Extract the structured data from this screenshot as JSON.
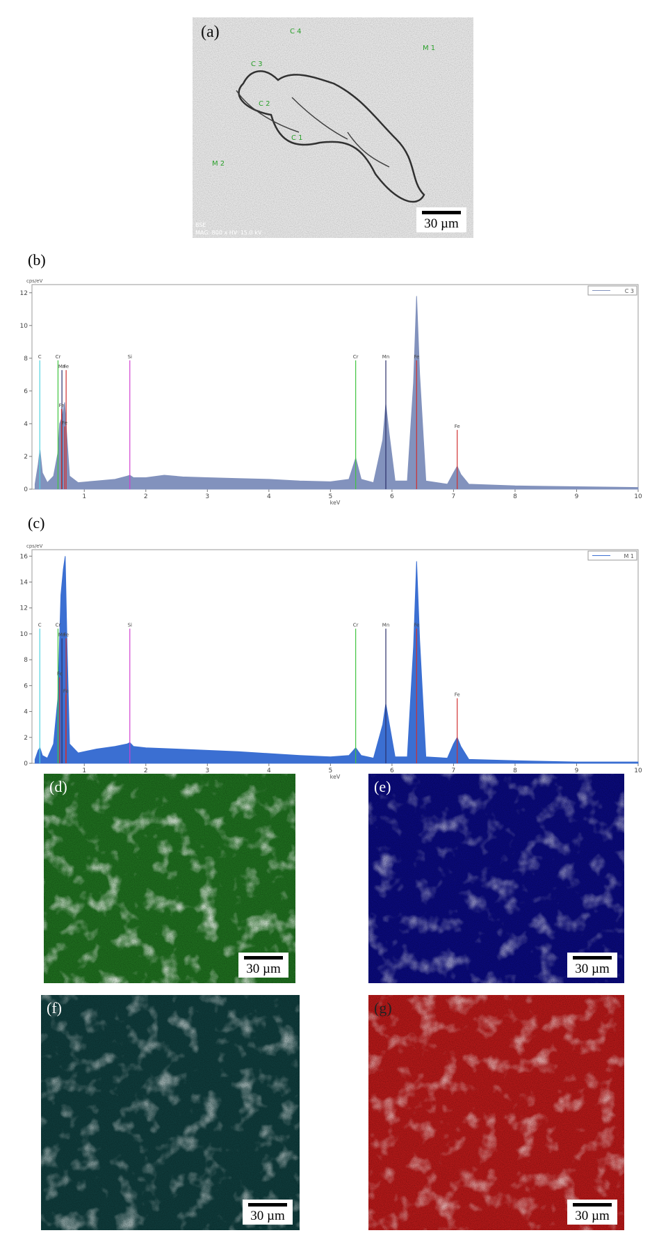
{
  "panels": {
    "a": {
      "label": "(a)",
      "scale_bar": "30 µm",
      "annotations": [
        "C 4",
        "M 1",
        "C 3",
        "C 2",
        "C 1",
        "M 2"
      ],
      "footer_1": "BSE",
      "footer_2": "MAG: 800 x  HV: 15.0 kV"
    },
    "d": {
      "label": "(d)",
      "scale_bar": "30 µm"
    },
    "e": {
      "label": "(e)",
      "scale_bar": "30 µm"
    },
    "f": {
      "label": "(f)",
      "scale_bar": "30 µm"
    },
    "g": {
      "label": "(g)",
      "scale_bar": "30 µm"
    }
  },
  "chart_data": [
    {
      "type": "area",
      "label": "(b)",
      "y_label": "cps/eV",
      "x_label": "keV",
      "legend": "C 3",
      "color": "#8292bd",
      "x": [
        0.2,
        0.25,
        0.28,
        0.32,
        0.4,
        0.5,
        0.57,
        0.6,
        0.64,
        0.68,
        0.72,
        0.76,
        0.9,
        1.2,
        1.5,
        1.7,
        1.74,
        1.8,
        2.0,
        2.3,
        2.6,
        3.0,
        3.5,
        4.0,
        4.5,
        5.0,
        5.3,
        5.41,
        5.5,
        5.7,
        5.85,
        5.9,
        5.95,
        6.05,
        6.25,
        6.35,
        6.4,
        6.45,
        6.55,
        6.9,
        7.0,
        7.06,
        7.12,
        7.25,
        8,
        9,
        10
      ],
      "values": [
        0.3,
        1.5,
        2.4,
        1.0,
        0.4,
        0.8,
        2.2,
        4.0,
        4.4,
        5.3,
        3.0,
        0.8,
        0.4,
        0.5,
        0.6,
        0.8,
        0.85,
        0.7,
        0.7,
        0.85,
        0.75,
        0.7,
        0.65,
        0.6,
        0.5,
        0.45,
        0.6,
        1.9,
        0.6,
        0.4,
        3.0,
        5.2,
        3.5,
        0.5,
        0.5,
        6.5,
        11.8,
        7.0,
        0.5,
        0.3,
        1.0,
        1.4,
        0.9,
        0.3,
        0.2,
        0.15,
        0.1
      ],
      "xlim": [
        0.15,
        10
      ],
      "xticks": [
        1,
        2,
        3,
        4,
        5,
        6,
        7,
        8,
        9,
        10
      ],
      "ylim": [
        0,
        12.5
      ],
      "yticks": [
        0,
        2,
        4,
        6,
        8,
        10,
        12
      ],
      "peaks": [
        {
          "label": "C",
          "x": 0.277,
          "color": "#4fd3e0"
        },
        {
          "label": "Cr",
          "x": 0.573,
          "color": "#3ec43e"
        },
        {
          "label": "Mn",
          "x": 0.637,
          "color": "#2a2f6a"
        },
        {
          "label": "Fe",
          "x": 0.705,
          "color": "#d03030"
        },
        {
          "label": "Fe",
          "x": 0.63,
          "color": "#d03030"
        },
        {
          "label": "Fe",
          "x": 0.68,
          "color": "#d03030"
        },
        {
          "label": "Si",
          "x": 1.74,
          "color": "#d040d0"
        },
        {
          "label": "Cr",
          "x": 5.41,
          "color": "#3ec43e"
        },
        {
          "label": "Mn",
          "x": 5.9,
          "color": "#2a2f6a"
        },
        {
          "label": "Fe",
          "x": 6.4,
          "color": "#d03030"
        },
        {
          "label": "Fe",
          "x": 7.06,
          "color": "#d03030"
        }
      ]
    },
    {
      "type": "area",
      "label": "(c)",
      "y_label": "cps/eV",
      "x_label": "keV",
      "legend": "M 1",
      "color": "#3b6fd2",
      "x": [
        0.2,
        0.25,
        0.28,
        0.32,
        0.4,
        0.5,
        0.57,
        0.62,
        0.66,
        0.69,
        0.72,
        0.76,
        0.9,
        1.2,
        1.5,
        1.7,
        1.74,
        1.8,
        2.0,
        2.5,
        3.0,
        3.5,
        4.0,
        4.5,
        5.0,
        5.3,
        5.41,
        5.5,
        5.7,
        5.85,
        5.9,
        5.95,
        6.05,
        6.25,
        6.35,
        6.4,
        6.45,
        6.55,
        6.9,
        7.0,
        7.06,
        7.12,
        7.25,
        8,
        9,
        10
      ],
      "values": [
        0.3,
        1.0,
        1.2,
        0.6,
        0.4,
        1.5,
        5.0,
        13.0,
        15.0,
        16.0,
        9.0,
        1.5,
        0.8,
        1.1,
        1.3,
        1.5,
        1.6,
        1.3,
        1.2,
        1.1,
        1.0,
        0.9,
        0.75,
        0.6,
        0.5,
        0.6,
        1.2,
        0.6,
        0.4,
        3.0,
        4.6,
        3.2,
        0.5,
        0.5,
        9.0,
        15.6,
        9.5,
        0.5,
        0.4,
        1.5,
        2.0,
        1.3,
        0.3,
        0.2,
        0.1,
        0.1
      ],
      "xlim": [
        0.15,
        10
      ],
      "xticks": [
        1,
        2,
        3,
        4,
        5,
        6,
        7,
        8,
        9,
        10
      ],
      "ylim": [
        0,
        16.5
      ],
      "yticks": [
        0,
        2,
        4,
        6,
        8,
        10,
        12,
        14,
        16
      ],
      "peaks": [
        {
          "label": "C",
          "x": 0.277,
          "color": "#4fd3e0"
        },
        {
          "label": "Cr",
          "x": 0.573,
          "color": "#3ec43e"
        },
        {
          "label": "Mn",
          "x": 0.637,
          "color": "#2a2f6a"
        },
        {
          "label": "Fe",
          "x": 0.705,
          "color": "#d03030"
        },
        {
          "label": "Fe",
          "x": 0.6,
          "color": "#d03030"
        },
        {
          "label": "Fe",
          "x": 0.7,
          "color": "#d03030"
        },
        {
          "label": "Si",
          "x": 1.74,
          "color": "#d040d0"
        },
        {
          "label": "Cr",
          "x": 5.41,
          "color": "#3ec43e"
        },
        {
          "label": "Mn",
          "x": 5.9,
          "color": "#2a2f6a"
        },
        {
          "label": "Fe",
          "x": 6.4,
          "color": "#d03030"
        },
        {
          "label": "Fe",
          "x": 7.06,
          "color": "#d03030"
        }
      ]
    }
  ]
}
